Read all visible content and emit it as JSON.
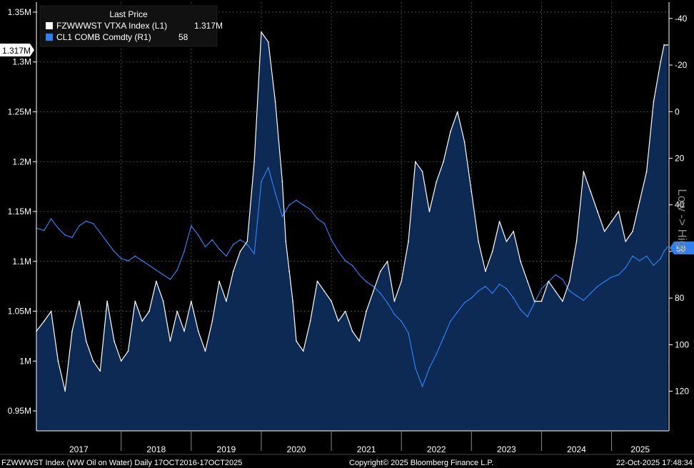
{
  "chart_data": {
    "type": "line",
    "legend": {
      "title": "Last Price",
      "placement": "top-left",
      "entries": [
        {
          "name": "FZWWWST VTXA Index  (L1)",
          "value": "1.317M",
          "color": "#ffffff"
        },
        {
          "name": "CL1 COMB Comdty  (R1)",
          "value": "58",
          "color": "#2f7fef"
        }
      ]
    },
    "left_axis": {
      "ylim": [
        930000,
        1360000
      ],
      "ticks": [
        950000,
        1000000,
        1050000,
        1100000,
        1150000,
        1200000,
        1250000,
        1300000,
        1350000
      ],
      "tick_labels": [
        "0.95M",
        "1M",
        "1.05M",
        "1.1M",
        "1.15M",
        "1.2M",
        "1.25M",
        "1.3M",
        "1.35M"
      ],
      "last_value_label": "1.317M"
    },
    "right_axis": {
      "inverted": true,
      "ylim": [
        -47,
        137
      ],
      "ticks": [
        -40,
        -20,
        0,
        20,
        40,
        60,
        80,
        100,
        120
      ],
      "tick_labels": [
        "-40",
        "-20",
        "0",
        "20",
        "40",
        "60",
        "80",
        "100",
        "120"
      ],
      "last_value_label": "58"
    },
    "x_axis": {
      "range": [
        2016.79,
        2025.82
      ],
      "year_labels": [
        "2017",
        "2018",
        "2019",
        "2020",
        "2021",
        "2022",
        "2023",
        "2024",
        "2025"
      ],
      "year_boundaries": [
        2018,
        2019,
        2020,
        2021,
        2022,
        2023,
        2024,
        2025
      ]
    },
    "series": [
      {
        "name": "FZWWWST VTXA Index",
        "axis": "left",
        "color": "#ffffff",
        "area_fill": "#0d2a55",
        "x": [
          2016.79,
          2016.9,
          2017.0,
          2017.1,
          2017.2,
          2017.3,
          2017.4,
          2017.5,
          2017.6,
          2017.7,
          2017.8,
          2017.9,
          2018.0,
          2018.1,
          2018.2,
          2018.3,
          2018.4,
          2018.5,
          2018.6,
          2018.7,
          2018.8,
          2018.9,
          2019.0,
          2019.1,
          2019.2,
          2019.3,
          2019.4,
          2019.5,
          2019.6,
          2019.7,
          2019.8,
          2019.9,
          2020.0,
          2020.1,
          2020.2,
          2020.3,
          2020.35,
          2020.4,
          2020.45,
          2020.5,
          2020.6,
          2020.7,
          2020.8,
          2020.9,
          2021.0,
          2021.1,
          2021.2,
          2021.3,
          2021.4,
          2021.5,
          2021.6,
          2021.7,
          2021.8,
          2021.9,
          2022.0,
          2022.1,
          2022.2,
          2022.3,
          2022.4,
          2022.5,
          2022.6,
          2022.7,
          2022.8,
          2022.9,
          2023.0,
          2023.1,
          2023.2,
          2023.3,
          2023.4,
          2023.5,
          2023.6,
          2023.7,
          2023.8,
          2023.9,
          2024.0,
          2024.1,
          2024.2,
          2024.3,
          2024.4,
          2024.5,
          2024.6,
          2024.7,
          2024.8,
          2024.9,
          2025.0,
          2025.1,
          2025.2,
          2025.3,
          2025.4,
          2025.5,
          2025.6,
          2025.7,
          2025.75,
          2025.8
        ],
        "values": [
          1030000,
          1040000,
          1050000,
          1000000,
          970000,
          1030000,
          1060000,
          1020000,
          1000000,
          990000,
          1060000,
          1020000,
          1000000,
          1010000,
          1060000,
          1040000,
          1050000,
          1080000,
          1060000,
          1020000,
          1050000,
          1030000,
          1060000,
          1030000,
          1010000,
          1040000,
          1080000,
          1060000,
          1090000,
          1110000,
          1120000,
          1200000,
          1330000,
          1320000,
          1260000,
          1180000,
          1120000,
          1090000,
          1060000,
          1020000,
          1010000,
          1040000,
          1080000,
          1070000,
          1060000,
          1040000,
          1050000,
          1030000,
          1020000,
          1050000,
          1070000,
          1090000,
          1100000,
          1060000,
          1080000,
          1120000,
          1200000,
          1190000,
          1150000,
          1180000,
          1200000,
          1230000,
          1250000,
          1220000,
          1170000,
          1120000,
          1090000,
          1110000,
          1140000,
          1120000,
          1130000,
          1100000,
          1080000,
          1060000,
          1060000,
          1080000,
          1070000,
          1060000,
          1080000,
          1120000,
          1190000,
          1170000,
          1150000,
          1130000,
          1140000,
          1150000,
          1120000,
          1130000,
          1160000,
          1190000,
          1260000,
          1300000,
          1317000,
          1317000
        ]
      },
      {
        "name": "CL1 COMB Comdty",
        "axis": "right",
        "color": "#2f7fef",
        "x": [
          2016.79,
          2016.9,
          2017.0,
          2017.1,
          2017.2,
          2017.3,
          2017.4,
          2017.5,
          2017.6,
          2017.7,
          2017.8,
          2017.9,
          2018.0,
          2018.1,
          2018.2,
          2018.3,
          2018.4,
          2018.5,
          2018.6,
          2018.7,
          2018.8,
          2018.9,
          2019.0,
          2019.1,
          2019.2,
          2019.3,
          2019.4,
          2019.5,
          2019.6,
          2019.7,
          2019.8,
          2019.9,
          2020.0,
          2020.1,
          2020.2,
          2020.3,
          2020.4,
          2020.5,
          2020.6,
          2020.7,
          2020.8,
          2020.9,
          2021.0,
          2021.1,
          2021.2,
          2021.3,
          2021.4,
          2021.5,
          2021.6,
          2021.7,
          2021.8,
          2021.9,
          2022.0,
          2022.1,
          2022.2,
          2022.3,
          2022.4,
          2022.5,
          2022.6,
          2022.7,
          2022.8,
          2022.9,
          2023.0,
          2023.1,
          2023.2,
          2023.3,
          2023.4,
          2023.5,
          2023.6,
          2023.7,
          2023.8,
          2023.9,
          2024.0,
          2024.1,
          2024.2,
          2024.3,
          2024.4,
          2024.5,
          2024.6,
          2024.7,
          2024.8,
          2024.9,
          2025.0,
          2025.1,
          2025.2,
          2025.3,
          2025.4,
          2025.5,
          2025.6,
          2025.7,
          2025.75,
          2025.8
        ],
        "values": [
          50,
          51,
          46,
          50,
          53,
          54,
          49,
          47,
          48,
          52,
          56,
          60,
          63,
          64,
          62,
          64,
          66,
          68,
          70,
          72,
          68,
          60,
          49,
          53,
          58,
          55,
          59,
          62,
          57,
          55,
          57,
          61,
          30,
          24,
          35,
          45,
          40,
          38,
          40,
          42,
          46,
          48,
          55,
          60,
          64,
          66,
          70,
          73,
          75,
          78,
          82,
          87,
          90,
          95,
          110,
          118,
          110,
          104,
          97,
          90,
          86,
          82,
          80,
          77,
          75,
          78,
          74,
          76,
          80,
          85,
          88,
          82,
          76,
          73,
          70,
          72,
          77,
          79,
          81,
          78,
          75,
          73,
          71,
          70,
          67,
          62,
          64,
          62,
          66,
          63,
          60,
          58
        ]
      }
    ],
    "footer": {
      "left": "FZWWWST Index (WW Oil on Water) Daily 17OCT2016-17OCT2025",
      "center": "Copyright© 2025 Bloomberg Finance L.P.",
      "right": "22-Oct-2025  17:48:34"
    },
    "watermark": "Low -> High"
  }
}
